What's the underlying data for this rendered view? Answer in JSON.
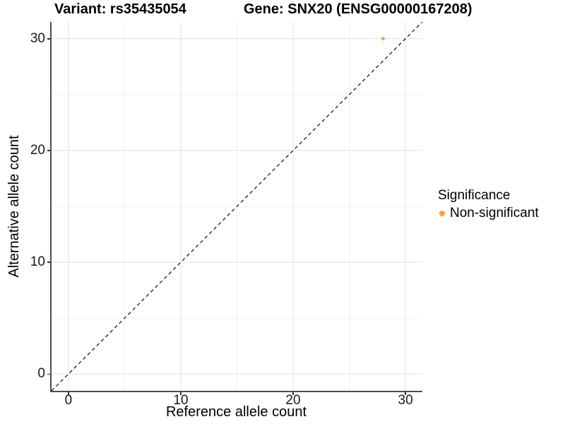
{
  "chart_data": {
    "type": "scatter",
    "title_left": "Variant: rs35435054",
    "title_right": "Gene: SNX20 (ENSG00000167208)",
    "xlabel": "Reference allele count",
    "ylabel": "Alternative allele count",
    "xlim": [
      -1.5,
      31.5
    ],
    "ylim": [
      -1.5,
      31.5
    ],
    "x_ticks": [
      0,
      10,
      20,
      30
    ],
    "y_ticks": [
      0,
      10,
      20,
      30
    ],
    "x_minor_ticks": [
      5,
      15,
      25
    ],
    "y_minor_ticks": [
      5,
      15,
      25
    ],
    "grid": true,
    "legend": {
      "position": "right",
      "title": "Significance",
      "items": [
        {
          "label": "Non-significant",
          "color": "#F9A23E"
        }
      ]
    },
    "series": [
      {
        "name": "Non-significant",
        "color": "#F9A23E",
        "point_radius": 2.5,
        "points": [
          {
            "x": 28,
            "y": 30
          }
        ]
      }
    ],
    "reference_line": {
      "kind": "identity",
      "equation": "y = x",
      "style": "dashed",
      "color": "#1A1A1A"
    }
  },
  "style": {
    "background": "#FFFFFF",
    "axis_line_color": "#4D4D4D",
    "tick_mark_color": "#333333",
    "tick_label_color": "#1A1A1A",
    "grid_major_color": "#E2E2E2",
    "grid_minor_color": "#F0F0F0",
    "accent_orange": "#F9A23E"
  }
}
